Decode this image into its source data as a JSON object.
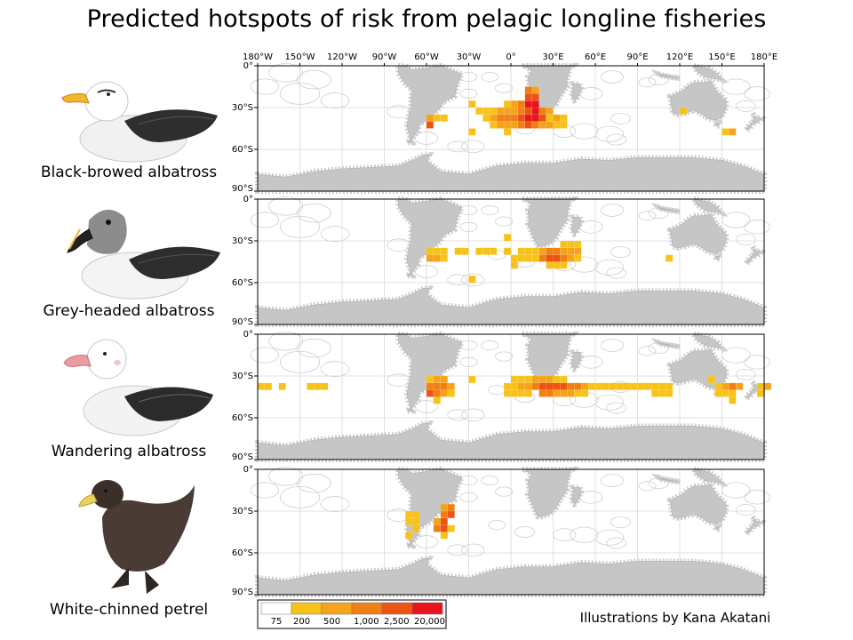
{
  "title": "Predicted hotspots of risk from pelagic longline fisheries",
  "credit": "Illustrations by Kana Akatani",
  "lon_ticks": [
    "180°W",
    "150°W",
    "120°W",
    "90°W",
    "60°W",
    "30°W",
    "0°",
    "30°E",
    "60°E",
    "90°E",
    "120°E",
    "150°E",
    "180°E"
  ],
  "lat_ticks": [
    "0°",
    "30°S",
    "60°S",
    "90°S"
  ],
  "species": [
    {
      "name": "Black-browed albatross"
    },
    {
      "name": "Grey-headed albatross"
    },
    {
      "name": "Wandering albatross"
    },
    {
      "name": "White-chinned petrel"
    }
  ],
  "legend": {
    "labels": [
      "75",
      "200",
      "500",
      "1,000",
      "2,500",
      "20,000"
    ],
    "colors": [
      "#ffffff",
      "#f7c21a",
      "#f5a31b",
      "#f07f16",
      "#ec5413",
      "#e8141b"
    ]
  },
  "colors": {
    "land": "#c6c6c6",
    "grid": "#d8d8d8",
    "coast_outline": "#cfcfcf"
  },
  "hotspot_grid": {
    "cell_degrees": 5,
    "origin": "lon -180, lat 0",
    "maps": [
      {
        "cells": [
          [
            -60,
            -35,
            2
          ],
          [
            -55,
            -35,
            1
          ],
          [
            -50,
            -35,
            1
          ],
          [
            -60,
            -40,
            4
          ],
          [
            -30,
            -25,
            1
          ],
          [
            -25,
            -30,
            1
          ],
          [
            -20,
            -30,
            1
          ],
          [
            -15,
            -30,
            1
          ],
          [
            -10,
            -30,
            2
          ],
          [
            -5,
            -30,
            2
          ],
          [
            0,
            -30,
            2
          ],
          [
            5,
            -30,
            3
          ],
          [
            10,
            -30,
            4
          ],
          [
            15,
            -30,
            5
          ],
          [
            20,
            -30,
            3
          ],
          [
            25,
            -30,
            2
          ],
          [
            -5,
            -25,
            1
          ],
          [
            0,
            -25,
            2
          ],
          [
            5,
            -25,
            3
          ],
          [
            10,
            -25,
            5
          ],
          [
            15,
            -25,
            5
          ],
          [
            10,
            -20,
            4
          ],
          [
            15,
            -20,
            4
          ],
          [
            10,
            -15,
            3
          ],
          [
            15,
            -15,
            2
          ],
          [
            -20,
            -35,
            1
          ],
          [
            -15,
            -35,
            2
          ],
          [
            -10,
            -35,
            3
          ],
          [
            -5,
            -35,
            3
          ],
          [
            0,
            -35,
            3
          ],
          [
            5,
            -35,
            4
          ],
          [
            10,
            -35,
            5
          ],
          [
            15,
            -35,
            5
          ],
          [
            20,
            -35,
            4
          ],
          [
            25,
            -35,
            3
          ],
          [
            30,
            -35,
            2
          ],
          [
            35,
            -35,
            1
          ],
          [
            -15,
            -40,
            1
          ],
          [
            -10,
            -40,
            2
          ],
          [
            -5,
            -40,
            2
          ],
          [
            0,
            -40,
            2
          ],
          [
            5,
            -40,
            3
          ],
          [
            10,
            -40,
            4
          ],
          [
            15,
            -40,
            3
          ],
          [
            20,
            -40,
            2
          ],
          [
            25,
            -40,
            2
          ],
          [
            30,
            -40,
            1
          ],
          [
            35,
            -40,
            1
          ],
          [
            -30,
            -45,
            1
          ],
          [
            -5,
            -45,
            1
          ],
          [
            25,
            -35,
            1
          ],
          [
            120,
            -30,
            1
          ],
          [
            150,
            -45,
            1
          ],
          [
            155,
            -45,
            2
          ]
        ]
      },
      {
        "cells": [
          [
            -60,
            -35,
            1
          ],
          [
            -55,
            -35,
            1
          ],
          [
            -50,
            -35,
            1
          ],
          [
            -60,
            -40,
            2
          ],
          [
            -55,
            -40,
            2
          ],
          [
            -50,
            -40,
            1
          ],
          [
            -40,
            -35,
            1
          ],
          [
            -35,
            -35,
            1
          ],
          [
            -30,
            -55,
            1
          ],
          [
            -25,
            -35,
            1
          ],
          [
            -20,
            -35,
            1
          ],
          [
            -15,
            -35,
            1
          ],
          [
            -5,
            -25,
            1
          ],
          [
            0,
            -40,
            1
          ],
          [
            0,
            -45,
            1
          ],
          [
            5,
            -40,
            1
          ],
          [
            20,
            -35,
            2
          ],
          [
            25,
            -35,
            3
          ],
          [
            30,
            -35,
            3
          ],
          [
            35,
            -30,
            1
          ],
          [
            40,
            -30,
            1
          ],
          [
            45,
            -30,
            1
          ],
          [
            35,
            -35,
            2
          ],
          [
            40,
            -35,
            2
          ],
          [
            45,
            -35,
            2
          ],
          [
            -5,
            -35,
            1
          ],
          [
            5,
            -35,
            1
          ],
          [
            10,
            -35,
            1
          ],
          [
            15,
            -35,
            1
          ],
          [
            20,
            -40,
            3
          ],
          [
            25,
            -40,
            4
          ],
          [
            30,
            -40,
            4
          ],
          [
            35,
            -40,
            3
          ],
          [
            40,
            -40,
            2
          ],
          [
            45,
            -40,
            1
          ],
          [
            25,
            -45,
            1
          ],
          [
            30,
            -45,
            1
          ],
          [
            35,
            -45,
            1
          ],
          [
            15,
            -40,
            1
          ],
          [
            10,
            -40,
            1
          ],
          [
            -30,
            -55,
            1
          ],
          [
            110,
            -40,
            1
          ]
        ]
      },
      {
        "cells": [
          [
            -180,
            -35,
            1
          ],
          [
            -175,
            -35,
            1
          ],
          [
            -165,
            -35,
            1
          ],
          [
            -145,
            -35,
            1
          ],
          [
            -140,
            -35,
            1
          ],
          [
            -135,
            -35,
            1
          ],
          [
            -60,
            -30,
            1
          ],
          [
            -55,
            -30,
            2
          ],
          [
            -50,
            -30,
            2
          ],
          [
            -60,
            -35,
            3
          ],
          [
            -55,
            -35,
            3
          ],
          [
            -50,
            -35,
            3
          ],
          [
            -45,
            -35,
            2
          ],
          [
            -60,
            -40,
            4
          ],
          [
            -55,
            -40,
            3
          ],
          [
            -50,
            -40,
            2
          ],
          [
            -45,
            -40,
            1
          ],
          [
            -55,
            -45,
            1
          ],
          [
            0,
            -30,
            1
          ],
          [
            5,
            -30,
            1
          ],
          [
            10,
            -30,
            1
          ],
          [
            15,
            -30,
            2
          ],
          [
            20,
            -30,
            2
          ],
          [
            25,
            -30,
            2
          ],
          [
            30,
            -30,
            1
          ],
          [
            35,
            -30,
            1
          ],
          [
            -5,
            -35,
            1
          ],
          [
            0,
            -35,
            1
          ],
          [
            5,
            -35,
            2
          ],
          [
            10,
            -35,
            2
          ],
          [
            15,
            -35,
            3
          ],
          [
            20,
            -35,
            4
          ],
          [
            25,
            -35,
            4
          ],
          [
            30,
            -35,
            4
          ],
          [
            35,
            -35,
            4
          ],
          [
            40,
            -35,
            3
          ],
          [
            45,
            -35,
            3
          ],
          [
            50,
            -35,
            2
          ],
          [
            55,
            -35,
            1
          ],
          [
            60,
            -35,
            1
          ],
          [
            65,
            -35,
            1
          ],
          [
            70,
            -35,
            1
          ],
          [
            75,
            -35,
            1
          ],
          [
            80,
            -35,
            1
          ],
          [
            85,
            -35,
            1
          ],
          [
            90,
            -35,
            1
          ],
          [
            95,
            -35,
            1
          ],
          [
            100,
            -35,
            1
          ],
          [
            105,
            -35,
            1
          ],
          [
            110,
            -35,
            1
          ],
          [
            20,
            -40,
            3
          ],
          [
            25,
            -40,
            3
          ],
          [
            30,
            -40,
            2
          ],
          [
            35,
            -40,
            2
          ],
          [
            40,
            -40,
            2
          ],
          [
            45,
            -40,
            1
          ],
          [
            50,
            -40,
            1
          ],
          [
            10,
            -40,
            1
          ],
          [
            5,
            -40,
            1
          ],
          [
            -5,
            -40,
            1
          ],
          [
            0,
            -40,
            1
          ],
          [
            -30,
            -30,
            1
          ],
          [
            100,
            -40,
            1
          ],
          [
            105,
            -40,
            1
          ],
          [
            110,
            -40,
            1
          ],
          [
            140,
            -30,
            1
          ],
          [
            145,
            -35,
            1
          ],
          [
            150,
            -35,
            2
          ],
          [
            155,
            -35,
            3
          ],
          [
            160,
            -35,
            2
          ],
          [
            145,
            -40,
            1
          ],
          [
            150,
            -40,
            1
          ],
          [
            155,
            -40,
            1
          ],
          [
            155,
            -45,
            1
          ],
          [
            175,
            -35,
            1
          ],
          [
            180,
            -35,
            2
          ],
          [
            175,
            -40,
            1
          ]
        ]
      },
      {
        "cells": [
          [
            -75,
            -30,
            1
          ],
          [
            -70,
            -30,
            1
          ],
          [
            -75,
            -35,
            1
          ],
          [
            -70,
            -35,
            1
          ],
          [
            -70,
            -40,
            1
          ],
          [
            -75,
            -45,
            1
          ],
          [
            -50,
            -25,
            2
          ],
          [
            -45,
            -25,
            3
          ],
          [
            -50,
            -30,
            3
          ],
          [
            -45,
            -30,
            4
          ],
          [
            -55,
            -35,
            2
          ],
          [
            -50,
            -35,
            4
          ],
          [
            -55,
            -40,
            3
          ],
          [
            -50,
            -40,
            4
          ],
          [
            -45,
            -40,
            1
          ],
          [
            -50,
            -45,
            1
          ]
        ]
      }
    ]
  }
}
